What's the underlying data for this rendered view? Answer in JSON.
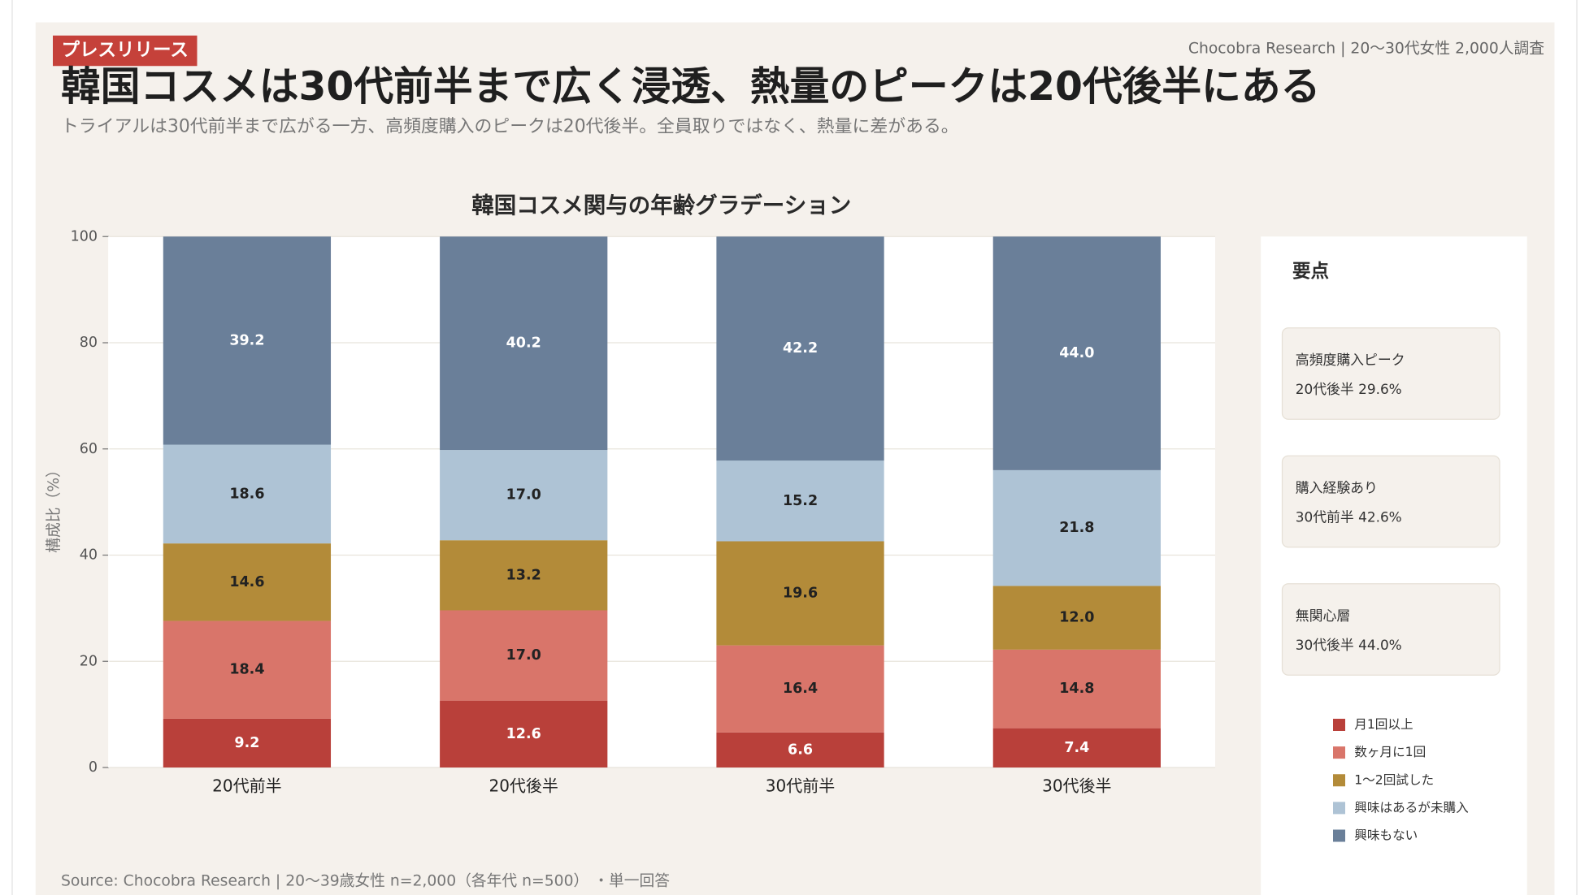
{
  "header": {
    "badge": "プレスリリース",
    "source_top": "Chocobra Research | 20〜30代女性 2,000人調査",
    "title": "韓国コスメは30代前半まで広く浸透、熱量のピークは20代後半にある",
    "subtitle": "トライアルは30代前半まで広がる一方、高頻度購入のピークは20代後半。全員取りではなく、熱量に差がある。"
  },
  "chart_data": {
    "type": "stacked-bar",
    "title": "韓国コスメ関与の年齢グラデーション",
    "y_label": "構成比（%）",
    "categories": [
      "20代前半",
      "20代後半",
      "30代前半",
      "30代後半"
    ],
    "ylim": [
      0,
      100
    ],
    "yticks": [
      0,
      20,
      40,
      60,
      80,
      100
    ],
    "grid": true,
    "legend": "right",
    "series": [
      {
        "name": "月1回以上",
        "color": "#b9403a",
        "label_color": "#ffffff",
        "values": [
          9.2,
          12.6,
          6.6,
          7.4
        ],
        "value_labels": [
          "9.2",
          "12.6",
          "6.6",
          "7.4"
        ]
      },
      {
        "name": "数ヶ月に1回",
        "color": "#d9756a",
        "label_color": "#222222",
        "values": [
          18.4,
          17,
          16.4,
          14.8
        ],
        "value_labels": [
          "18.4",
          "17.0",
          "16.4",
          "14.8"
        ]
      },
      {
        "name": "1〜2回試した",
        "color": "#b38b39",
        "label_color": "#222222",
        "values": [
          14.6,
          13.2,
          19.6,
          12
        ],
        "value_labels": [
          "14.6",
          "13.2",
          "19.6",
          "12.0"
        ]
      },
      {
        "name": "興味はあるが未購入",
        "color": "#aec3d5",
        "label_color": "#222222",
        "values": [
          18.6,
          17,
          15.2,
          21.8
        ],
        "value_labels": [
          "18.6",
          "17.0",
          "15.2",
          "21.8"
        ]
      },
      {
        "name": "興味もない",
        "color": "#6a7f99",
        "label_color": "#ffffff",
        "values": [
          39.2,
          40.2,
          42.2,
          44
        ],
        "value_labels": [
          "39.2",
          "40.2",
          "42.2",
          "44.0"
        ]
      }
    ]
  },
  "panel": {
    "title": "要点",
    "items": [
      {
        "label": "高頻度購入ピーク",
        "value": "20代後半 29.6%"
      },
      {
        "label": "購入経験あり",
        "value": "30代前半 42.6%"
      },
      {
        "label": "無関心層",
        "value": "30代後半 44.0%"
      }
    ]
  },
  "footer": {
    "source": "Source: Chocobra Research | 20〜39歳女性 n=2,000（各年代 n=500） ・単一回答"
  }
}
